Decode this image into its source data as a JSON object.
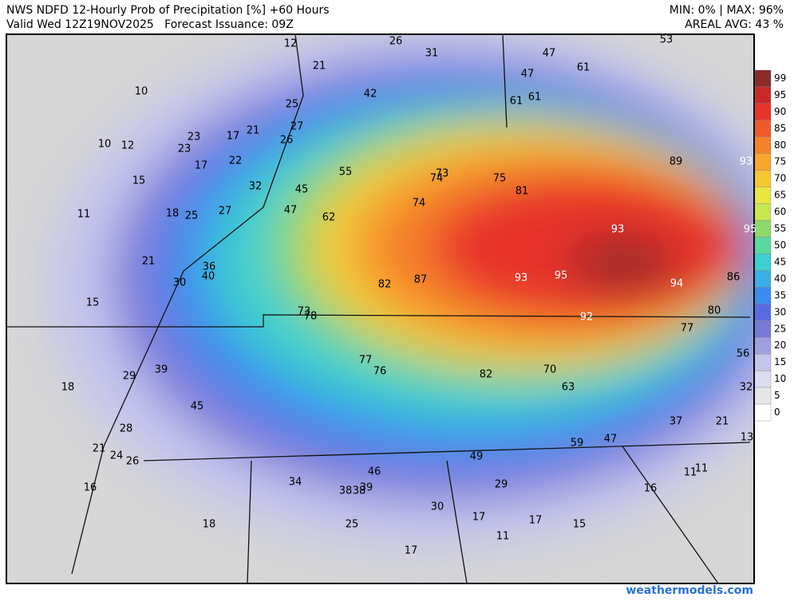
{
  "header": {
    "title": "NWS NDFD 12-Hourly Prob of Precipitation [%] +60 Hours",
    "valid": "Valid Wed 12Z19NOV2025   Forecast Issuance: 09Z",
    "minmax": "MIN: 0% | MAX: 96%",
    "areal_avg": "AREAL AVG: 43 %"
  },
  "colorbar": {
    "levels": [
      99,
      95,
      90,
      85,
      80,
      75,
      70,
      65,
      60,
      55,
      50,
      45,
      40,
      35,
      30,
      25,
      20,
      15,
      10,
      5,
      0
    ],
    "colors": [
      "#8b2a2a",
      "#c8282a",
      "#e8322a",
      "#f05a2a",
      "#f5822a",
      "#f8a52d",
      "#f5c832",
      "#e8e640",
      "#c8e650",
      "#8fd86a",
      "#5ad8a0",
      "#3ecfcf",
      "#3aafe8",
      "#3a8cf0",
      "#5a6ae0",
      "#7a78d8",
      "#9f9fe0",
      "#c4c4ec",
      "#dcdcf0",
      "#e6e6e6",
      "#ffffff"
    ]
  },
  "map_labels": [
    12,
    26,
    31,
    53,
    47,
    61,
    21,
    47,
    10,
    42,
    61,
    61,
    25,
    27,
    23,
    17,
    21,
    26,
    10,
    12,
    23,
    22,
    17,
    89,
    93,
    55,
    73,
    74,
    75,
    15,
    32,
    45,
    81,
    74,
    47,
    11,
    18,
    25,
    27,
    62,
    93,
    95,
    21,
    36,
    40,
    93,
    95,
    86,
    30,
    82,
    87,
    94,
    15,
    73,
    78,
    80,
    92,
    77,
    56,
    77,
    39,
    76,
    70,
    82,
    29,
    18,
    63,
    32,
    45,
    37,
    21,
    28,
    13,
    59,
    47,
    21,
    24,
    26,
    49,
    46,
    11,
    11,
    34,
    38,
    38,
    39,
    29,
    16,
    16,
    30,
    17,
    17,
    15,
    18,
    25,
    11,
    17
  ],
  "footer": "weathermodels.com"
}
